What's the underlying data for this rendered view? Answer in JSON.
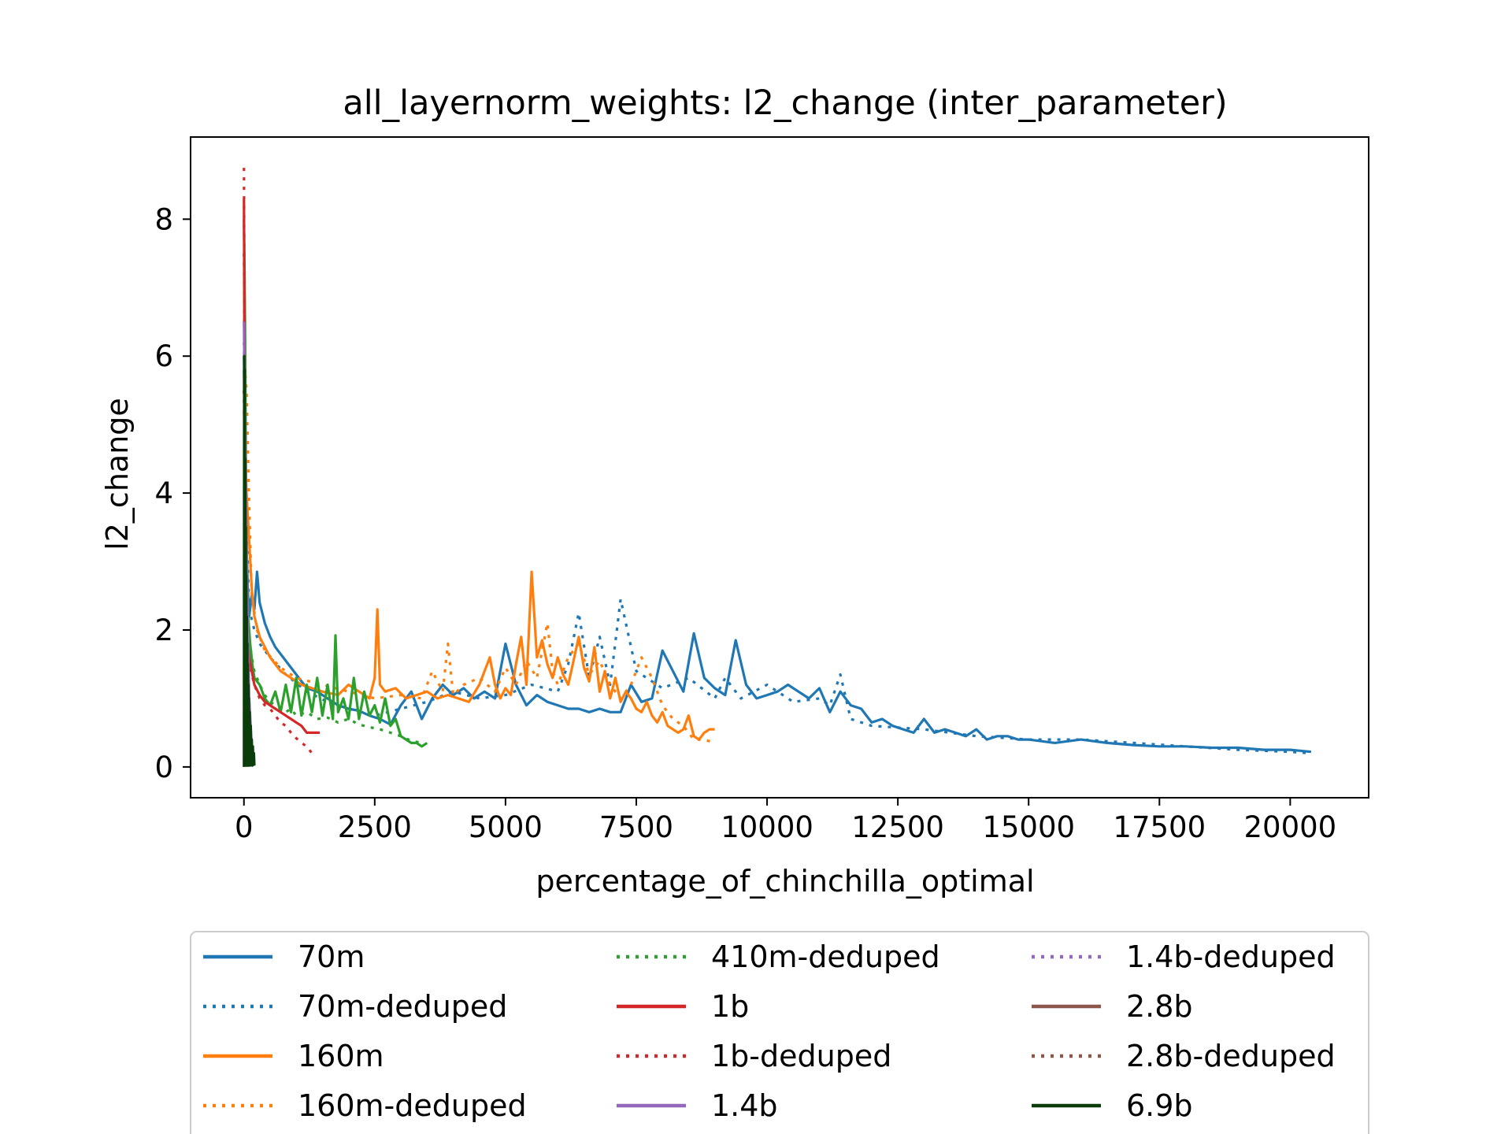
{
  "chart_data": {
    "type": "line",
    "title": "all_layernorm_weights: l2_change (inter_parameter)",
    "xlabel": "percentage_of_chinchilla_optimal",
    "ylabel": "l2_change",
    "xlim": [
      -1020,
      21500
    ],
    "ylim": [
      -0.45,
      9.2
    ],
    "xticks": [
      0,
      2500,
      5000,
      7500,
      10000,
      12500,
      15000,
      17500,
      20000
    ],
    "yticks": [
      0,
      2,
      4,
      6,
      8
    ],
    "grid": false,
    "legend_position": "below",
    "series": [
      {
        "name": "70m",
        "color": "#1f77b4",
        "style": "solid",
        "x": [
          0,
          25,
          50,
          75,
          100,
          150,
          200,
          250,
          300,
          400,
          500,
          600,
          800,
          1000,
          1200,
          1400,
          1600,
          1800,
          2000,
          2200,
          2400,
          2600,
          2800,
          3000,
          3200,
          3400,
          3600,
          3800,
          4000,
          4200,
          4400,
          4600,
          4800,
          5000,
          5200,
          5400,
          5600,
          5800,
          6000,
          6200,
          6400,
          6600,
          6800,
          7000,
          7200,
          7400,
          7600,
          7800,
          8000,
          8200,
          8400,
          8600,
          8800,
          9000,
          9200,
          9400,
          9600,
          9800,
          10000,
          10200,
          10400,
          10600,
          10800,
          11000,
          11200,
          11400,
          11600,
          11800,
          12000,
          12200,
          12400,
          12600,
          12800,
          13000,
          13200,
          13400,
          13600,
          13800,
          14000,
          14200,
          14400,
          14600,
          14800,
          15000,
          15500,
          16000,
          16500,
          17000,
          17500,
          18000,
          18500,
          19000,
          19500,
          20000,
          20400
        ],
        "y": [
          6.0,
          4.5,
          3.2,
          2.6,
          2.2,
          2.5,
          2.3,
          2.85,
          2.4,
          2.1,
          1.9,
          1.75,
          1.55,
          1.35,
          1.15,
          1.1,
          1.0,
          0.9,
          0.85,
          0.82,
          0.75,
          0.7,
          0.62,
          0.9,
          1.1,
          0.7,
          1.0,
          1.2,
          1.05,
          1.15,
          1.0,
          1.1,
          1.0,
          1.8,
          1.2,
          0.9,
          1.05,
          0.95,
          0.9,
          0.85,
          0.85,
          0.8,
          0.85,
          0.8,
          0.8,
          1.2,
          0.95,
          1.0,
          1.7,
          1.4,
          1.1,
          1.95,
          1.3,
          1.15,
          1.05,
          1.85,
          1.2,
          1.0,
          1.05,
          1.1,
          1.2,
          1.1,
          1.0,
          1.15,
          0.8,
          1.1,
          0.9,
          0.85,
          0.65,
          0.7,
          0.6,
          0.55,
          0.5,
          0.7,
          0.5,
          0.55,
          0.5,
          0.45,
          0.55,
          0.4,
          0.45,
          0.45,
          0.4,
          0.4,
          0.35,
          0.4,
          0.35,
          0.32,
          0.3,
          0.3,
          0.28,
          0.28,
          0.25,
          0.25,
          0.22
        ]
      },
      {
        "name": "70m-deduped",
        "color": "#1f77b4",
        "style": "dotted",
        "x": [
          0,
          50,
          100,
          200,
          300,
          500,
          800,
          1200,
          1600,
          2000,
          2500,
          3000,
          3500,
          4000,
          4500,
          5000,
          5500,
          6000,
          6200,
          6400,
          6600,
          6800,
          7000,
          7200,
          7500,
          8000,
          8500,
          9000,
          9200,
          9500,
          10000,
          10500,
          11000,
          11200,
          11400,
          11600,
          12000,
          13000,
          14000,
          15000,
          16000,
          17000,
          18000,
          19000,
          20000,
          20400
        ],
        "y": [
          5.5,
          3.5,
          2.3,
          2.0,
          1.8,
          1.6,
          1.35,
          1.1,
          0.95,
          0.85,
          0.75,
          0.85,
          0.95,
          1.1,
          1.0,
          1.05,
          1.2,
          1.1,
          1.5,
          2.25,
          1.3,
          1.9,
          1.2,
          2.45,
          1.4,
          1.15,
          1.3,
          1.0,
          1.3,
          1.0,
          1.2,
          0.95,
          1.0,
          0.9,
          1.35,
          0.7,
          0.6,
          0.55,
          0.45,
          0.4,
          0.4,
          0.35,
          0.3,
          0.25,
          0.22,
          0.2
        ]
      },
      {
        "name": "160m",
        "color": "#ff7f0e",
        "style": "solid",
        "x": [
          0,
          50,
          100,
          150,
          200,
          300,
          500,
          700,
          900,
          1100,
          1300,
          1500,
          1800,
          2000,
          2200,
          2400,
          2500,
          2550,
          2600,
          2700,
          2900,
          3100,
          3300,
          3500,
          3700,
          3900,
          4100,
          4300,
          4500,
          4700,
          4800,
          4900,
          5000,
          5100,
          5200,
          5300,
          5400,
          5500,
          5600,
          5700,
          5800,
          5900,
          6000,
          6100,
          6200,
          6300,
          6400,
          6500,
          6600,
          6700,
          6800,
          6900,
          7000,
          7100,
          7200,
          7300,
          7400,
          7500,
          7600,
          7700,
          7800,
          7900,
          8000,
          8100,
          8200,
          8300,
          8400,
          8500,
          8600,
          8700,
          8800,
          8900,
          9000
        ],
        "y": [
          5.2,
          4.0,
          3.3,
          2.6,
          2.2,
          1.9,
          1.6,
          1.4,
          1.3,
          1.2,
          1.15,
          1.1,
          1.05,
          1.2,
          1.1,
          1.0,
          1.3,
          2.3,
          1.2,
          1.1,
          1.15,
          1.0,
          1.05,
          1.1,
          1.0,
          1.05,
          1.0,
          0.95,
          1.2,
          1.6,
          1.2,
          1.0,
          1.15,
          1.05,
          1.5,
          1.9,
          1.2,
          2.85,
          1.6,
          1.85,
          1.5,
          1.3,
          1.6,
          1.35,
          1.2,
          1.55,
          1.9,
          1.45,
          1.25,
          1.75,
          1.1,
          1.4,
          1.0,
          1.3,
          0.95,
          1.1,
          1.0,
          0.85,
          0.8,
          0.95,
          0.75,
          0.65,
          0.8,
          0.6,
          0.55,
          0.5,
          0.55,
          0.75,
          0.45,
          0.4,
          0.5,
          0.55,
          0.55
        ]
      },
      {
        "name": "160m-deduped",
        "color": "#ff7f0e",
        "style": "dotted",
        "x": [
          0,
          50,
          100,
          150,
          250,
          400,
          700,
          1000,
          1500,
          2000,
          2500,
          3000,
          3400,
          3600,
          3800,
          3900,
          4000,
          4200,
          4500,
          4800,
          5000,
          5200,
          5400,
          5600,
          5800,
          5900,
          6000,
          6200,
          6400,
          6600,
          6800,
          7000,
          7200,
          7400,
          7600,
          7800,
          8000,
          8200,
          8400,
          8600,
          8800,
          9000
        ],
        "y": [
          6.0,
          5.5,
          3.8,
          2.5,
          2.0,
          1.7,
          1.45,
          1.3,
          1.2,
          1.1,
          1.0,
          1.05,
          1.0,
          1.4,
          1.1,
          1.8,
          1.05,
          1.2,
          1.3,
          1.1,
          1.45,
          1.2,
          1.55,
          1.3,
          2.1,
          1.4,
          1.2,
          1.6,
          1.8,
          1.35,
          1.55,
          1.2,
          1.0,
          1.2,
          1.6,
          1.3,
          0.9,
          0.7,
          0.6,
          0.4,
          0.4,
          0.35
        ]
      },
      {
        "name": "410m",
        "color": "#2ca02c",
        "style": "solid",
        "x": [
          0,
          20,
          40,
          60,
          80,
          120,
          160,
          200,
          300,
          400,
          500,
          600,
          700,
          800,
          900,
          1000,
          1100,
          1200,
          1300,
          1400,
          1500,
          1600,
          1700,
          1750,
          1800,
          1900,
          2000,
          2100,
          2200,
          2300,
          2400,
          2500,
          2600,
          2700,
          2800,
          2900,
          3000,
          3100,
          3200,
          3300,
          3400,
          3500
        ],
        "y": [
          8.0,
          6.5,
          4.0,
          2.8,
          2.2,
          1.8,
          1.5,
          1.3,
          1.2,
          1.0,
          0.9,
          1.1,
          0.8,
          1.2,
          0.8,
          1.3,
          0.75,
          1.2,
          0.8,
          1.3,
          0.75,
          1.2,
          0.7,
          1.92,
          0.8,
          1.0,
          0.7,
          1.3,
          0.7,
          1.1,
          0.75,
          0.9,
          0.65,
          1.0,
          0.6,
          0.7,
          0.45,
          0.4,
          0.35,
          0.35,
          0.3,
          0.35
        ]
      },
      {
        "name": "410m-deduped",
        "color": "#2ca02c",
        "style": "dotted",
        "x": [
          0,
          20,
          40,
          60,
          100,
          150,
          200,
          300,
          400,
          500,
          600,
          700,
          800,
          900,
          1000,
          1200,
          1400,
          1600,
          1800,
          2000,
          2200,
          2400,
          2600,
          2800,
          3000,
          3200,
          3400
        ],
        "y": [
          7.5,
          5.0,
          3.2,
          2.3,
          1.9,
          1.6,
          1.4,
          1.2,
          1.05,
          0.95,
          0.9,
          0.85,
          0.8,
          0.85,
          0.75,
          0.8,
          0.7,
          0.72,
          0.65,
          0.7,
          0.62,
          0.58,
          0.55,
          0.5,
          0.45,
          0.38,
          0.35
        ]
      },
      {
        "name": "1b",
        "color": "#d62728",
        "style": "solid",
        "x": [
          0,
          10,
          20,
          40,
          60,
          100,
          150,
          200,
          300,
          400,
          500,
          600,
          700,
          800,
          900,
          1000,
          1100,
          1200,
          1300,
          1400,
          1450
        ],
        "y": [
          8.3,
          6.0,
          4.0,
          2.5,
          1.9,
          1.6,
          1.4,
          1.2,
          1.05,
          0.95,
          0.9,
          0.85,
          0.8,
          0.75,
          0.7,
          0.65,
          0.6,
          0.5,
          0.5,
          0.5,
          0.5
        ]
      },
      {
        "name": "1b-deduped",
        "color": "#d62728",
        "style": "dotted",
        "x": [
          0,
          10,
          20,
          40,
          60,
          100,
          200,
          300,
          400,
          500,
          600,
          700,
          800,
          900,
          1000,
          1100,
          1200,
          1300
        ],
        "y": [
          8.75,
          6.5,
          4.5,
          2.8,
          2.0,
          1.5,
          1.2,
          1.0,
          0.9,
          0.85,
          0.75,
          0.65,
          0.6,
          0.5,
          0.42,
          0.35,
          0.3,
          0.2
        ]
      },
      {
        "name": "1.4b",
        "color": "#9467bd",
        "style": "solid",
        "x": [
          0,
          50,
          100,
          150,
          200
        ],
        "y": [
          6.5,
          3.0,
          1.0,
          0.3,
          0.05
        ]
      },
      {
        "name": "1.4b-deduped",
        "color": "#9467bd",
        "style": "dotted",
        "x": [
          0,
          50,
          100,
          150,
          200
        ],
        "y": [
          6.2,
          2.8,
          0.9,
          0.25,
          0.05
        ]
      },
      {
        "name": "2.8b",
        "color": "#8c564b",
        "style": "solid",
        "x": [
          0,
          40,
          80,
          120,
          160,
          200
        ],
        "y": [
          5.8,
          2.5,
          0.8,
          0.2,
          0.05,
          0.05
        ]
      },
      {
        "name": "2.8b-deduped",
        "color": "#8c564b",
        "style": "dotted",
        "x": [
          0,
          40,
          80,
          120,
          160,
          200
        ],
        "y": [
          5.5,
          2.3,
          0.7,
          0.2,
          0.05,
          0.05
        ]
      },
      {
        "name": "6.9b",
        "color": "#0b3d0b",
        "style": "solid",
        "x": [
          0,
          5,
          10,
          15,
          20,
          25,
          30,
          35,
          40,
          45,
          50,
          55,
          60,
          65,
          70,
          75,
          80,
          85,
          90,
          95,
          100,
          110,
          120,
          130,
          140,
          150,
          160,
          170,
          180,
          190,
          200
        ],
        "y": [
          0,
          6.0,
          0.02,
          5.8,
          0.03,
          4.5,
          0.02,
          3.5,
          0.03,
          2.8,
          0.02,
          2.2,
          0.03,
          1.8,
          0.02,
          1.5,
          0.03,
          1.2,
          0.02,
          1.0,
          0.03,
          0.8,
          0.02,
          0.6,
          0.03,
          0.4,
          0.02,
          0.3,
          0.03,
          0.2,
          0.02
        ]
      }
    ],
    "legend_order": [
      [
        "70m",
        "70m-deduped",
        "160m",
        "160m-deduped"
      ],
      [
        "410m-deduped",
        "1b",
        "1b-deduped",
        "1.4b"
      ],
      [
        "1.4b-deduped",
        "2.8b",
        "2.8b-deduped",
        "6.9b"
      ]
    ]
  }
}
